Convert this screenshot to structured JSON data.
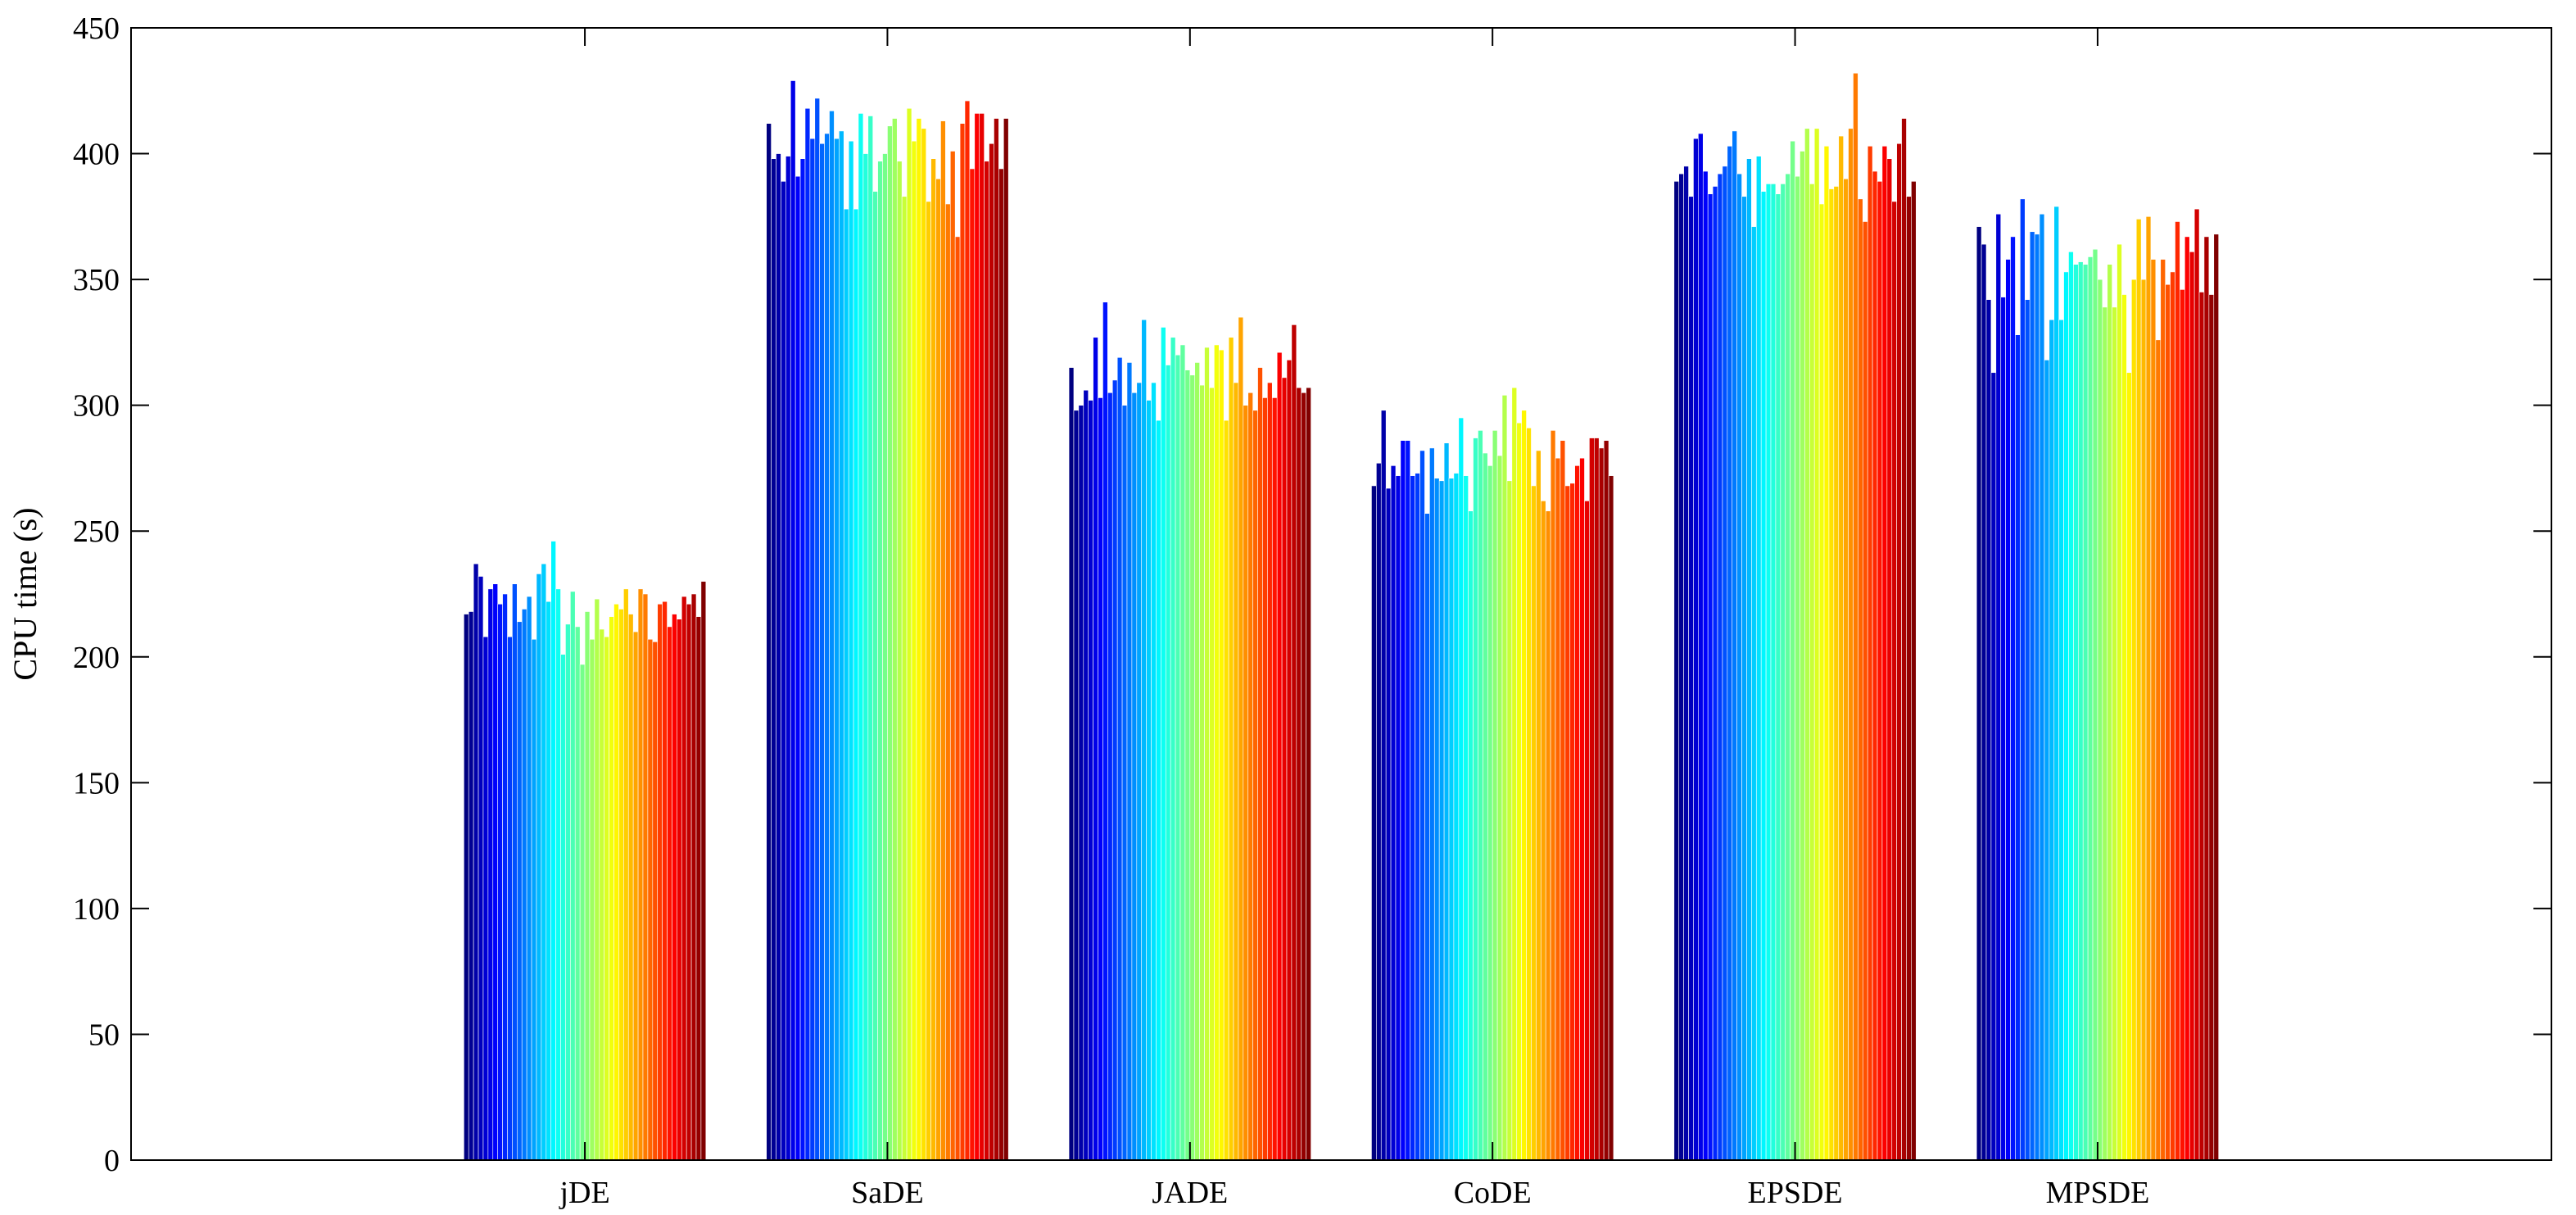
{
  "chart_data": {
    "type": "bar",
    "title": "",
    "xlabel": "",
    "ylabel": "CPU time (s)",
    "ylim": [
      0,
      450
    ],
    "yticks": [
      0,
      50,
      100,
      150,
      200,
      250,
      300,
      350,
      400,
      450
    ],
    "grid": false,
    "legend": "none",
    "colormap": "jet",
    "bars_per_group": 50,
    "categories": [
      "jDE",
      "SaDE",
      "JADE",
      "CoDE",
      "EPSDE",
      "MPSDE"
    ],
    "series_values": [
      [
        217,
        218,
        237,
        232,
        208,
        227,
        229,
        221,
        225,
        208,
        229,
        214,
        219,
        224,
        207,
        233,
        237,
        222,
        246,
        227,
        201,
        213,
        226,
        212,
        197,
        218,
        207,
        223,
        211,
        208,
        216,
        221,
        219,
        227,
        217,
        210,
        227,
        225,
        207,
        206,
        221,
        222,
        212,
        217,
        215,
        224,
        221,
        225,
        216,
        230
      ],
      [
        412,
        398,
        400,
        389,
        399,
        429,
        391,
        398,
        418,
        406,
        422,
        404,
        408,
        417,
        406,
        409,
        378,
        405,
        378,
        416,
        400,
        415,
        385,
        397,
        400,
        411,
        414,
        397,
        383,
        418,
        405,
        414,
        410,
        381,
        398,
        390,
        413,
        380,
        401,
        367,
        412,
        421,
        394,
        416,
        416,
        397,
        404,
        414,
        394,
        414
      ],
      [
        315,
        298,
        300,
        306,
        302,
        327,
        303,
        341,
        305,
        310,
        319,
        300,
        317,
        305,
        309,
        334,
        302,
        309,
        294,
        331,
        316,
        327,
        320,
        324,
        314,
        312,
        317,
        308,
        323,
        307,
        324,
        322,
        294,
        327,
        309,
        335,
        300,
        305,
        298,
        315,
        303,
        309,
        303,
        321,
        311,
        318,
        332,
        307,
        305,
        307
      ],
      [
        268,
        277,
        298,
        267,
        276,
        272,
        286,
        286,
        272,
        273,
        282,
        257,
        283,
        271,
        270,
        285,
        271,
        273,
        295,
        272,
        258,
        287,
        290,
        281,
        276,
        290,
        280,
        304,
        270,
        307,
        293,
        298,
        291,
        268,
        282,
        262,
        258,
        290,
        279,
        286,
        268,
        269,
        276,
        279,
        262,
        287,
        287,
        283,
        286,
        272
      ],
      [
        389,
        392,
        395,
        383,
        406,
        408,
        393,
        384,
        387,
        392,
        395,
        403,
        409,
        392,
        383,
        398,
        371,
        399,
        385,
        388,
        388,
        384,
        388,
        392,
        405,
        391,
        401,
        410,
        388,
        410,
        380,
        403,
        386,
        387,
        407,
        390,
        410,
        432,
        382,
        373,
        403,
        393,
        389,
        403,
        398,
        381,
        404,
        414,
        383,
        389
      ],
      [
        371,
        364,
        342,
        313,
        376,
        343,
        358,
        367,
        328,
        382,
        342,
        369,
        368,
        376,
        318,
        334,
        379,
        334,
        353,
        361,
        356,
        357,
        356,
        359,
        362,
        350,
        339,
        356,
        339,
        364,
        344,
        313,
        350,
        374,
        350,
        375,
        358,
        326,
        358,
        348,
        353,
        373,
        346,
        367,
        361,
        378,
        345,
        367,
        344,
        368
      ]
    ]
  }
}
